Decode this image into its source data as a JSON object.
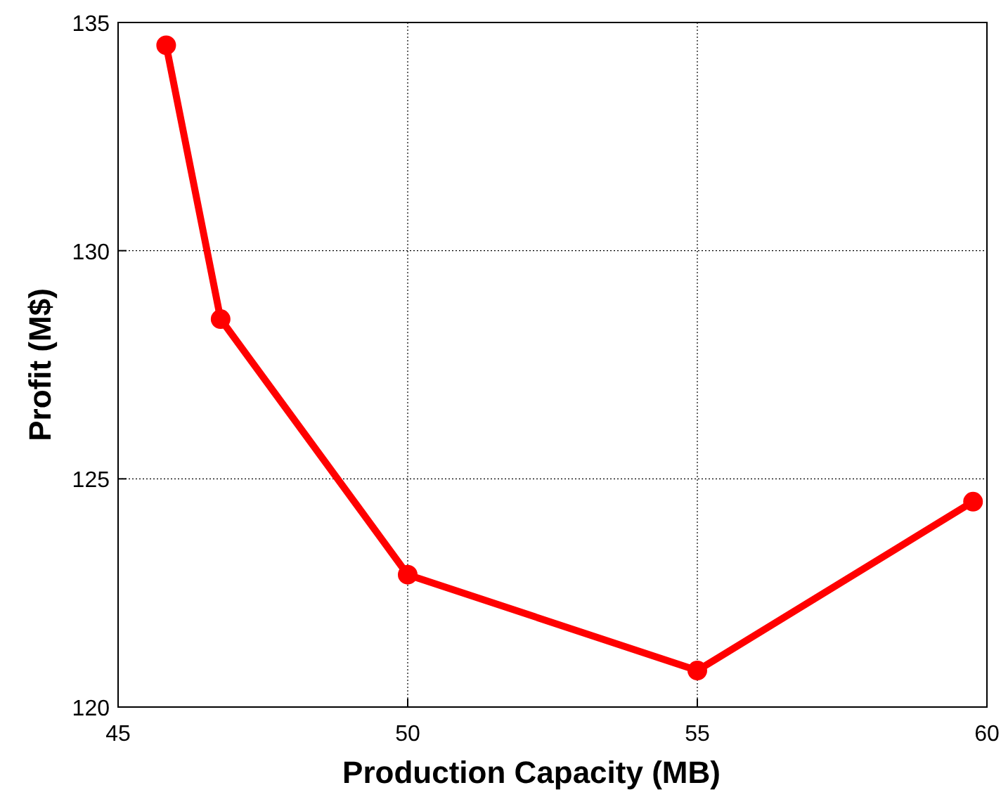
{
  "chart_data": {
    "type": "line",
    "xlabel": "Production Capacity (MB)",
    "ylabel": "Profit (M$)",
    "x": [
      45.83,
      46.77,
      50,
      55,
      59.76
    ],
    "series": [
      {
        "color": "#ff0000",
        "values": [
          134.5,
          128.5,
          122.9,
          120.8,
          124.5
        ]
      }
    ],
    "xlim": [
      45,
      60
    ],
    "xticks": [
      45,
      50,
      55,
      60
    ],
    "ylim": [
      120,
      135
    ],
    "yticks": [
      120,
      125,
      130,
      135
    ],
    "grid": true,
    "marker": "circle",
    "line_style": "solid"
  }
}
